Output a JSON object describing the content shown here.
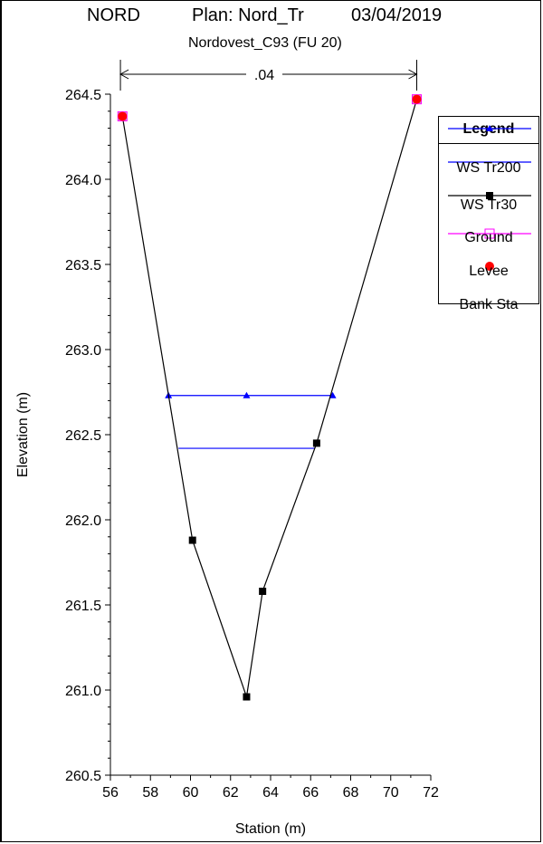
{
  "header": {
    "river": "NORD",
    "plan": "Plan: Nord_Tr",
    "date": "03/04/2019",
    "subtitle": "Nordovest_C93 (FU 20)"
  },
  "chart_data": {
    "type": "line",
    "xlabel": "Station (m)",
    "ylabel": "Elevation (m)",
    "xlim": [
      56,
      72
    ],
    "ylim": [
      260.5,
      264.5
    ],
    "xticks": [
      "56",
      "58",
      "60",
      "62",
      "64",
      "66",
      "68",
      "70",
      "72"
    ],
    "yticks": [
      "260.5",
      "261.0",
      "261.5",
      "262.0",
      "262.5",
      "263.0",
      "263.5",
      "264.0",
      "264.5"
    ],
    "manning_label": ".04",
    "manning_extent": [
      56.5,
      71.3
    ],
    "grid": false,
    "legend_position": "right",
    "legend_title": "Legend",
    "series": [
      {
        "name": "WS Tr200",
        "color": "#0000ff",
        "marker": "triangle",
        "x": [
          58.9,
          62.8,
          67.1
        ],
        "y": [
          262.73,
          262.73,
          262.73
        ]
      },
      {
        "name": "WS Tr30",
        "color": "#0000ff",
        "marker": "none",
        "x": [
          59.4,
          66.2
        ],
        "y": [
          262.42,
          262.42
        ]
      },
      {
        "name": "Ground",
        "color": "#000000",
        "marker": "square",
        "x": [
          56.6,
          60.1,
          62.8,
          63.6,
          66.3,
          71.3
        ],
        "y": [
          264.37,
          261.88,
          260.96,
          261.58,
          262.45,
          264.47
        ]
      },
      {
        "name": "Levee",
        "color": "#ff00ff",
        "marker": "open-square",
        "x": [
          56.6,
          71.3
        ],
        "y": [
          264.37,
          264.47
        ]
      },
      {
        "name": "Bank Sta",
        "color": "#ff0000",
        "marker": "circle",
        "x": [
          56.6,
          71.3
        ],
        "y": [
          264.37,
          264.47
        ]
      }
    ]
  }
}
